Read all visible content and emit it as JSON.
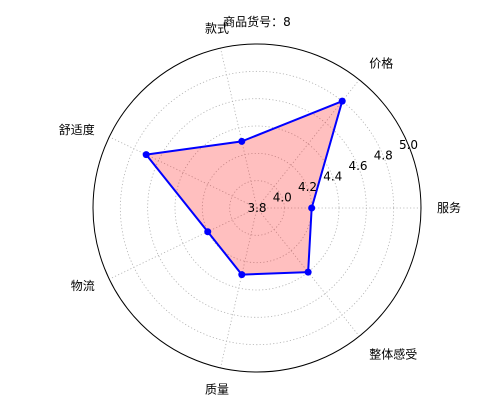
{
  "chart_data": {
    "type": "radar",
    "title": "商品货号：8",
    "categories": [
      "服务",
      "价格",
      "款式",
      "舒适度",
      "物流",
      "质量",
      "整体感受"
    ],
    "values": [
      4.2,
      4.8,
      4.3,
      4.7,
      4.2,
      4.3,
      4.4
    ],
    "rlim": [
      3.8,
      5.0
    ],
    "rticks": [
      3.8,
      4.0,
      4.2,
      4.4,
      4.6,
      4.8,
      5.0
    ],
    "rtick_labels": [
      "3.8",
      "4.0",
      "4.2",
      "4.4",
      "4.6",
      "4.8",
      "5.0"
    ],
    "grid": true,
    "series_color": "#0000ff",
    "fill_color": "#ff0000",
    "fill_alpha": 0.25
  }
}
